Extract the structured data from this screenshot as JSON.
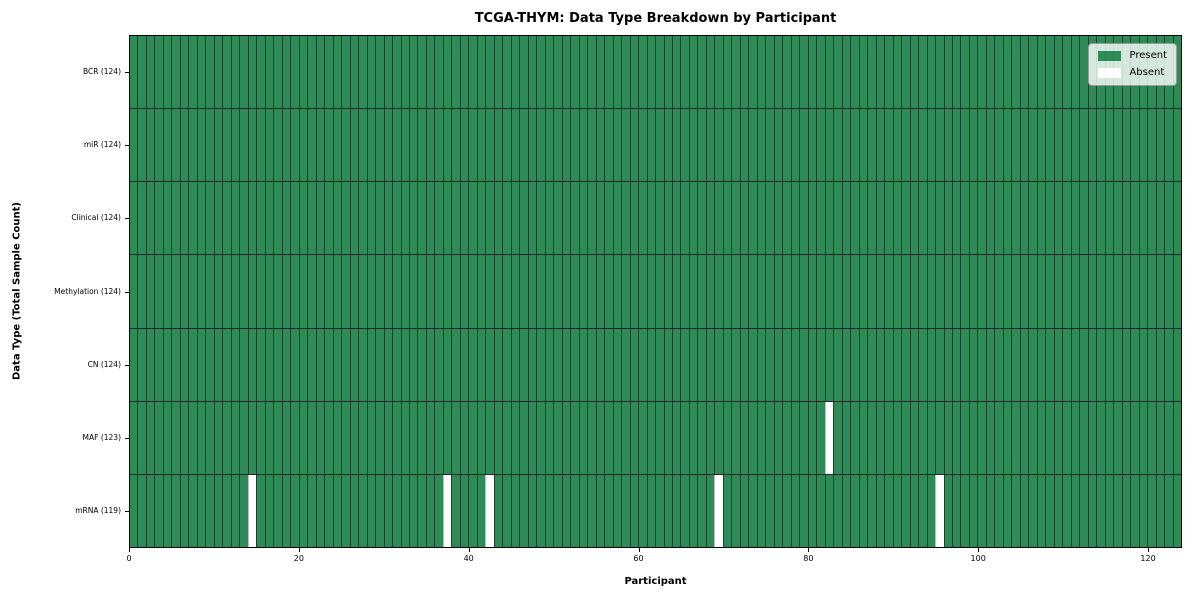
{
  "chart_data": {
    "type": "heatmap",
    "title": "TCGA-THYM: Data Type Breakdown by Participant",
    "xlabel": "Participant",
    "ylabel": "Data Type (Total Sample Count)",
    "x_range": [
      0,
      124
    ],
    "n_participants": 124,
    "x_ticks": [
      0,
      20,
      40,
      60,
      80,
      100,
      120
    ],
    "grid": false,
    "legend_position": "upper right",
    "present_color": "#2e8b57",
    "absent_color": "#ffffff",
    "legend": [
      {
        "label": "Present",
        "color": "#2e8b57"
      },
      {
        "label": "Absent",
        "color": "#ffffff"
      }
    ],
    "rows": [
      {
        "label": "BCR (124)",
        "data_type": "BCR",
        "present_count": 124,
        "absent_participants": []
      },
      {
        "label": "miR (124)",
        "data_type": "miR",
        "present_count": 124,
        "absent_participants": []
      },
      {
        "label": "Clinical (124)",
        "data_type": "Clinical",
        "present_count": 124,
        "absent_participants": []
      },
      {
        "label": "Methylation (124)",
        "data_type": "Methylation",
        "present_count": 124,
        "absent_participants": []
      },
      {
        "label": "CN (124)",
        "data_type": "CN",
        "present_count": 124,
        "absent_participants": []
      },
      {
        "label": "MAF (123)",
        "data_type": "MAF",
        "present_count": 123,
        "absent_participants": [
          82
        ]
      },
      {
        "label": "mRNA (119)",
        "data_type": "mRNA",
        "present_count": 119,
        "absent_participants": [
          14,
          37,
          42,
          69,
          95
        ]
      }
    ]
  }
}
